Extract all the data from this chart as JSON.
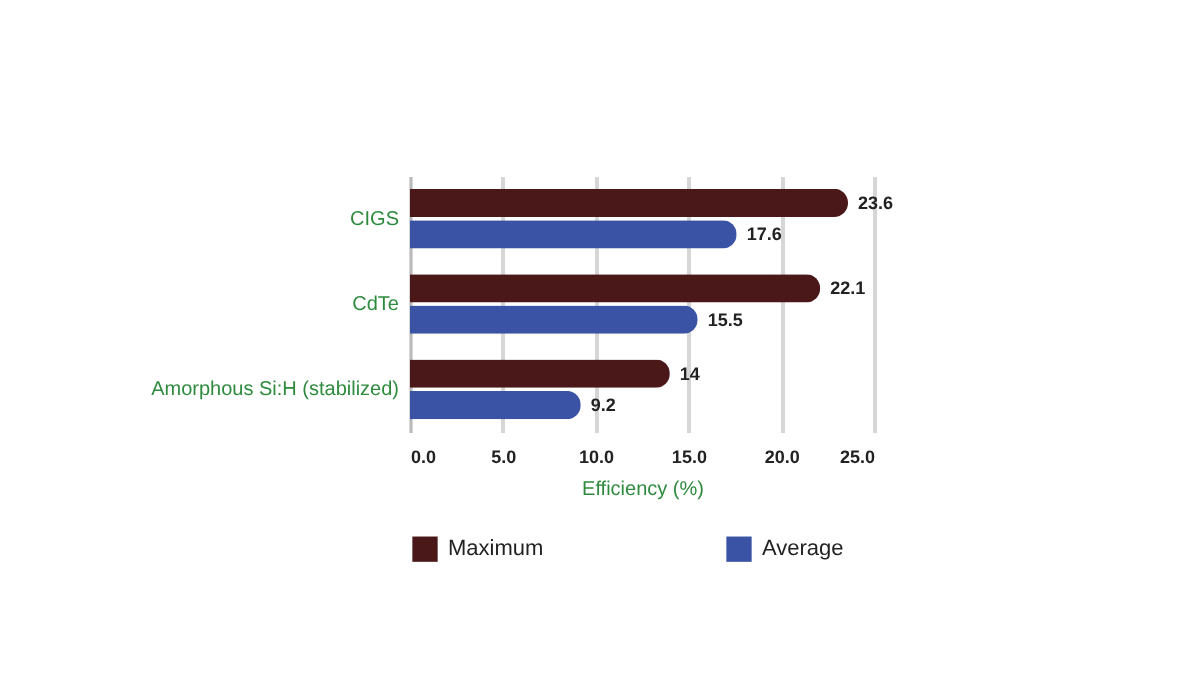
{
  "chart_data": {
    "type": "bar",
    "orientation": "horizontal",
    "xlabel": "Efficiency (%)",
    "categories": [
      "CIGS",
      "CdTe",
      "Amorphous Si:H (stabilized)"
    ],
    "series": [
      {
        "name": "Maximum",
        "color": "#4a1818",
        "values": [
          23.6,
          22.1,
          14
        ]
      },
      {
        "name": "Average",
        "color": "#3a53a4",
        "values": [
          17.6,
          15.5,
          9.2
        ]
      }
    ],
    "xlim": [
      0,
      25
    ],
    "xticks": [
      {
        "value": 0,
        "label": "0.0"
      },
      {
        "value": 5,
        "label": "5.0"
      },
      {
        "value": 10,
        "label": "10.0"
      },
      {
        "value": 15,
        "label": "15.0"
      },
      {
        "value": 20,
        "label": "20.0"
      },
      {
        "value": 25,
        "label": "25.0"
      }
    ],
    "grid": "x",
    "legend": "bottom",
    "data_labels": true
  }
}
